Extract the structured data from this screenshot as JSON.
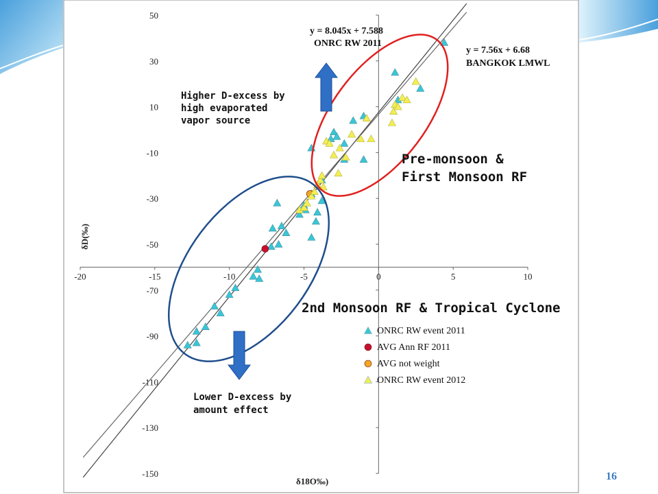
{
  "slide": {
    "number": "16"
  },
  "chart_data": {
    "type": "scatter",
    "title": "",
    "xlabel": "δ18O‰)",
    "ylabel": "δD(‰)",
    "xlim": [
      -20,
      10
    ],
    "ylim": [
      -150,
      50
    ],
    "x_ticks": [
      -20,
      -15,
      -10,
      -5,
      0,
      5,
      10
    ],
    "y_ticks": [
      50,
      30,
      10,
      -10,
      -30,
      -50,
      -70,
      -90,
      -110,
      -130,
      -150
    ],
    "grid": false,
    "legend_position": "bottom-right",
    "series": [
      {
        "name": "ONRC RW event 2011",
        "marker": "triangle",
        "color": "#39c6d6",
        "points": [
          [
            -12.8,
            -94
          ],
          [
            -12.2,
            -88
          ],
          [
            -12.2,
            -93
          ],
          [
            -11.6,
            -86
          ],
          [
            -11,
            -77
          ],
          [
            -10.6,
            -80
          ],
          [
            -10,
            -72
          ],
          [
            -9.6,
            -69
          ],
          [
            -8.4,
            -64
          ],
          [
            -8.1,
            -61
          ],
          [
            -8,
            -65
          ],
          [
            -7.2,
            -51
          ],
          [
            -7.1,
            -43
          ],
          [
            -6.8,
            -32
          ],
          [
            -6.7,
            -50
          ],
          [
            -6.5,
            -42
          ],
          [
            -6.2,
            -45
          ],
          [
            -5.3,
            -37
          ],
          [
            -5,
            -33
          ],
          [
            -4.9,
            -35
          ],
          [
            -4.5,
            -28
          ],
          [
            -4.5,
            -47
          ],
          [
            -4.2,
            -40
          ],
          [
            -4.1,
            -36
          ],
          [
            -3.8,
            -31
          ],
          [
            -3.8,
            -22
          ],
          [
            -4.5,
            -8
          ],
          [
            -3.2,
            -4
          ],
          [
            -3,
            -1
          ],
          [
            -2.8,
            -3
          ],
          [
            -2.3,
            -13
          ],
          [
            -2.3,
            -6
          ],
          [
            -1.7,
            4
          ],
          [
            -1,
            -13
          ],
          [
            -1,
            6
          ],
          [
            1.1,
            25
          ],
          [
            1.3,
            13
          ],
          [
            2.8,
            18
          ],
          [
            4.4,
            38
          ]
        ]
      },
      {
        "name": "AVG Ann RF 2011",
        "marker": "circle",
        "color": "#c8102e",
        "points": [
          [
            -7.6,
            -52
          ]
        ]
      },
      {
        "name": "AVG not weight",
        "marker": "circle",
        "color": "#f5a623",
        "points": [
          [
            -4.6,
            -28
          ]
        ]
      },
      {
        "name": "ONRC RW event 2012",
        "marker": "triangle",
        "color": "#f2ee54",
        "points": [
          [
            -5.3,
            -35
          ],
          [
            -5,
            -34
          ],
          [
            -4.8,
            -32
          ],
          [
            -4.5,
            -29
          ],
          [
            -4.3,
            -27
          ],
          [
            -4.1,
            -24
          ],
          [
            -3.9,
            -22
          ],
          [
            -3.8,
            -20
          ],
          [
            -3.7,
            -25
          ],
          [
            -3.5,
            -5
          ],
          [
            -3.3,
            -6
          ],
          [
            -3,
            -11
          ],
          [
            -2.7,
            -19
          ],
          [
            -2.6,
            -8
          ],
          [
            -2.2,
            -12
          ],
          [
            -1.8,
            -2
          ],
          [
            -1.2,
            -4
          ],
          [
            -0.8,
            5
          ],
          [
            -0.5,
            -4
          ],
          [
            0.9,
            3
          ],
          [
            1,
            8
          ],
          [
            1.1,
            11
          ],
          [
            1.3,
            10
          ],
          [
            1.6,
            14
          ],
          [
            1.9,
            13
          ],
          [
            2.5,
            21
          ]
        ]
      }
    ],
    "regression_lines": [
      {
        "label": "y = 8.045x + 7.588",
        "name": "ONRC RW 2011",
        "slope": 8.045,
        "intercept": 7.588,
        "x_range": [
          -19.8,
          5.9
        ]
      },
      {
        "label": "y = 7.56x + 6.68",
        "name": "BANGKOK LMWL",
        "slope": 7.56,
        "intercept": 6.68,
        "x_range": [
          -19.8,
          5.9
        ]
      }
    ],
    "annotations": {
      "upper_arrow": [
        "Higher D-excess by",
        "high evaporated",
        "vapor source"
      ],
      "lower_arrow": [
        "Lower D-excess by",
        "amount effect"
      ],
      "upper_group": [
        "Pre-monsoon &",
        "First Monsoon RF"
      ],
      "lower_group": "2nd Monsoon RF & Tropical Cyclone"
    }
  },
  "colors": {
    "upper_ellipse": "#e0201f",
    "lower_ellipse": "#1f4e8c",
    "arrow": "#2f6fc6",
    "frame": "#8a8a8a"
  }
}
